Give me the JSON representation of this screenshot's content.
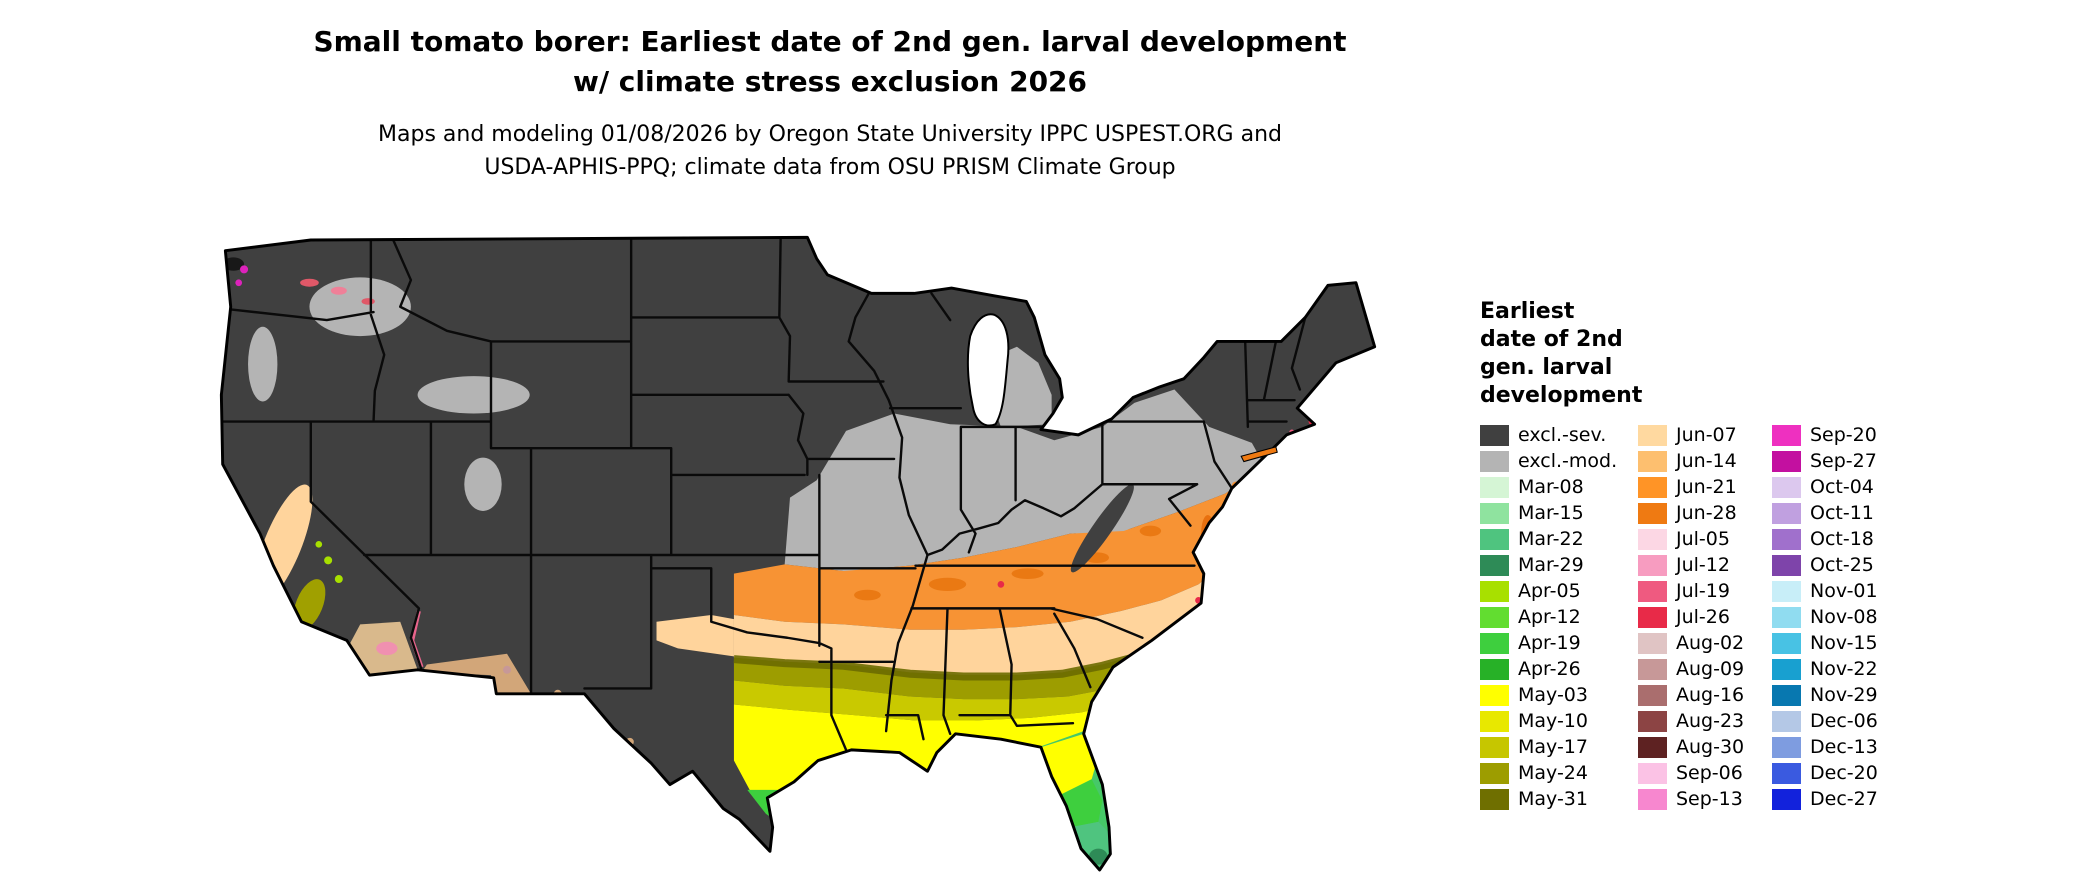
{
  "header": {
    "title_line1": "Small tomato borer: Earliest date of 2nd gen. larval development",
    "title_line2": "w/ climate stress exclusion 2026",
    "subtitle_line1": "Maps and modeling 01/08/2026 by Oregon State University IPPC USPEST.ORG and",
    "subtitle_line2": "USDA-APHIS-PPQ; climate data from OSU PRISM Climate Group"
  },
  "map": {
    "description": "Continental United States choropleth of earliest 2nd generation larval development dates",
    "excluded_severe_color": "#404040",
    "excluded_moderate_color": "#b4b4b4"
  },
  "legend": {
    "title_lines": [
      "Earliest",
      "date of 2nd",
      "gen. larval",
      "development"
    ],
    "columns": [
      [
        {
          "label": "excl.-sev.",
          "color": "#404040"
        },
        {
          "label": "excl.-mod.",
          "color": "#b4b4b4"
        },
        {
          "label": "Mar-08",
          "color": "#d5f5d5"
        },
        {
          "label": "Mar-15",
          "color": "#8fe39f"
        },
        {
          "label": "Mar-22",
          "color": "#4fc47f"
        },
        {
          "label": "Mar-29",
          "color": "#2e8b57"
        },
        {
          "label": "Apr-05",
          "color": "#a8e000"
        },
        {
          "label": "Apr-12",
          "color": "#62dd30"
        },
        {
          "label": "Apr-19",
          "color": "#3ecf3e"
        },
        {
          "label": "Apr-26",
          "color": "#27b127"
        },
        {
          "label": "May-03",
          "color": "#ffff00"
        },
        {
          "label": "May-10",
          "color": "#e8e800"
        },
        {
          "label": "May-17",
          "color": "#c6c600"
        },
        {
          "label": "May-24",
          "color": "#9d9d00"
        },
        {
          "label": "May-31",
          "color": "#6f6f00"
        }
      ],
      [
        {
          "label": "Jun-07",
          "color": "#ffd9a0"
        },
        {
          "label": "Jun-14",
          "color": "#fdbf6f"
        },
        {
          "label": "Jun-21",
          "color": "#ff9426"
        },
        {
          "label": "Jun-28",
          "color": "#ef7a12"
        },
        {
          "label": "Jul-05",
          "color": "#fcd7e4"
        },
        {
          "label": "Jul-12",
          "color": "#f79cc0"
        },
        {
          "label": "Jul-19",
          "color": "#ef5a80"
        },
        {
          "label": "Jul-26",
          "color": "#e82a48"
        },
        {
          "label": "Aug-02",
          "color": "#e0c4c4"
        },
        {
          "label": "Aug-09",
          "color": "#c79898"
        },
        {
          "label": "Aug-16",
          "color": "#aa6e6e"
        },
        {
          "label": "Aug-23",
          "color": "#8c4444"
        },
        {
          "label": "Aug-30",
          "color": "#5e2222"
        },
        {
          "label": "Sep-06",
          "color": "#fbc2e5"
        },
        {
          "label": "Sep-13",
          "color": "#f787cf"
        }
      ],
      [
        {
          "label": "Sep-20",
          "color": "#ee30c0"
        },
        {
          "label": "Sep-27",
          "color": "#c310a0"
        },
        {
          "label": "Oct-04",
          "color": "#dcc8ee"
        },
        {
          "label": "Oct-11",
          "color": "#c0a0e0"
        },
        {
          "label": "Oct-18",
          "color": "#a070cc"
        },
        {
          "label": "Oct-25",
          "color": "#7e44aa"
        },
        {
          "label": "Nov-01",
          "color": "#c8eef8"
        },
        {
          "label": "Nov-08",
          "color": "#90dcf0"
        },
        {
          "label": "Nov-15",
          "color": "#48c2e4"
        },
        {
          "label": "Nov-22",
          "color": "#18a0d0"
        },
        {
          "label": "Nov-29",
          "color": "#0878b0"
        },
        {
          "label": "Dec-06",
          "color": "#b4c8e6"
        },
        {
          "label": "Dec-13",
          "color": "#7e9ce0"
        },
        {
          "label": "Dec-20",
          "color": "#3a5ae0"
        },
        {
          "label": "Dec-27",
          "color": "#1222dc"
        }
      ]
    ]
  }
}
